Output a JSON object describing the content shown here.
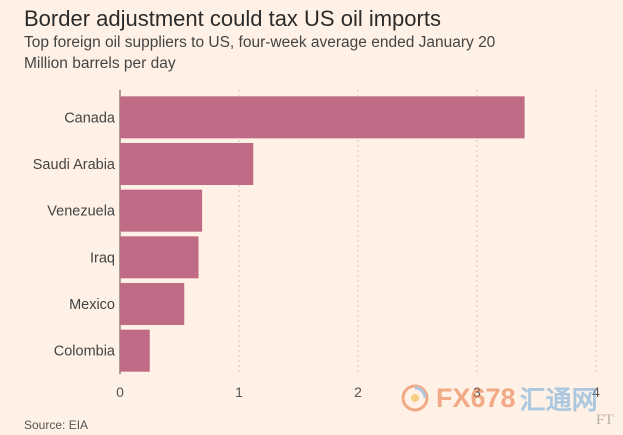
{
  "chart_data": {
    "type": "bar",
    "orientation": "horizontal",
    "title": "Border adjustment could tax US oil imports",
    "subtitle": "Top foreign oil suppliers to US, four-week average ended January 20",
    "unit_label": "Million barrels per day",
    "categories": [
      "Canada",
      "Saudi Arabia",
      "Venezuela",
      "Iraq",
      "Mexico",
      "Colombia"
    ],
    "values": [
      3.4,
      1.12,
      0.69,
      0.66,
      0.54,
      0.25
    ],
    "xlim": [
      0,
      4
    ],
    "xticks": [
      "0",
      "1",
      "2",
      "3",
      "4"
    ],
    "grid": "vertical dotted",
    "bar_color": "#bf6b85",
    "source": "Source: EIA"
  },
  "watermark": {
    "text": "FX678",
    "text_cn": "汇通网",
    "corner": "FT"
  }
}
